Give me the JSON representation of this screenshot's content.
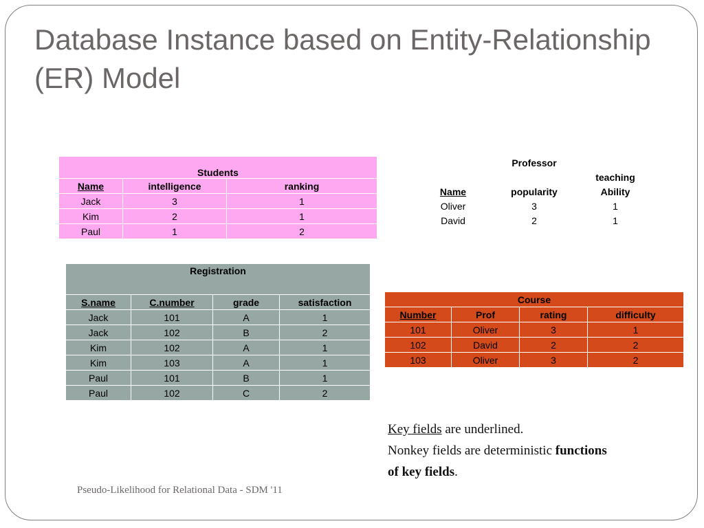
{
  "title": "Database Instance based on Entity-Relationship (ER) Model",
  "students": {
    "caption": "Students",
    "headers": [
      "Name",
      "intelligence",
      "ranking"
    ],
    "rows": [
      [
        "Jack",
        "3",
        "1"
      ],
      [
        "Kim",
        "2",
        "1"
      ],
      [
        "Paul",
        "1",
        "2"
      ]
    ]
  },
  "professor": {
    "caption": "Professor",
    "headers": [
      "Name",
      "popularity",
      "teaching",
      "Ability"
    ],
    "rows": [
      [
        "Oliver",
        "3",
        "1"
      ],
      [
        "David",
        "2",
        "1"
      ]
    ]
  },
  "registration": {
    "caption": "Registration",
    "headers": [
      "S.name",
      "C.number",
      "grade",
      "satisfaction"
    ],
    "rows": [
      [
        "Jack",
        "101",
        "A",
        "1"
      ],
      [
        "Jack",
        "102",
        "B",
        "2"
      ],
      [
        "Kim",
        "102",
        "A",
        "1"
      ],
      [
        "Kim",
        "103",
        "A",
        "1"
      ],
      [
        "Paul",
        "101",
        "B",
        "1"
      ],
      [
        "Paul",
        "102",
        "C",
        "2"
      ]
    ]
  },
  "course": {
    "caption": "Course",
    "headers": [
      "Number",
      "Prof",
      "rating",
      "difficulty"
    ],
    "rows": [
      [
        "101",
        "Oliver",
        "3",
        "1"
      ],
      [
        "102",
        "David",
        "2",
        "2"
      ],
      [
        "103",
        "Oliver",
        "3",
        "2"
      ]
    ]
  },
  "note": {
    "line1_key": "Key fields",
    "line1_rest": " are underlined.",
    "line2_a": "Nonkey  fields are deterministic ",
    "line2_b": "functions",
    "line3_b": "of key fields",
    "line3_end": "."
  },
  "footer": "Pseudo-Likelihood for Relational Data - SDM '11",
  "colors": {
    "students_bg": "#fda8f1",
    "registration_bg": "#97a7a4",
    "course_bg": "#d54a1a",
    "title_text": "#6b6766"
  }
}
